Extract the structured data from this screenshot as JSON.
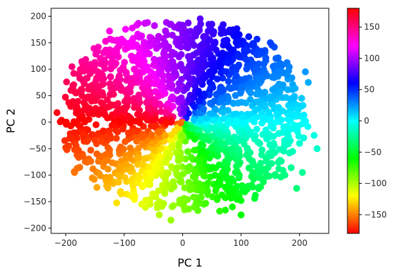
{
  "chart_data": {
    "type": "scatter",
    "title": "",
    "xlabel": "PC 1",
    "ylabel": "PC 2",
    "xlim": [
      -225,
      250
    ],
    "ylim": [
      -210,
      215
    ],
    "xticks": [
      -200,
      -100,
      0,
      100,
      200
    ],
    "yticks": [
      -200,
      -150,
      -100,
      -50,
      0,
      50,
      100,
      150,
      200
    ],
    "xtick_labels": [
      "−200",
      "−100",
      "0",
      "100",
      "200"
    ],
    "ytick_labels": [
      "−200",
      "−150",
      "−100",
      "−50",
      "0",
      "50",
      "100",
      "150",
      "200"
    ],
    "colorscale": "hsv",
    "color_range": [
      -180,
      180
    ],
    "colorbar": {
      "range": [
        -180,
        180
      ],
      "ticks": [
        -150,
        -100,
        -50,
        0,
        50,
        100,
        150
      ],
      "tick_labels": [
        "−150",
        "−100",
        "−50",
        "0",
        "50",
        "100",
        "150"
      ]
    },
    "grid": false,
    "point_cloud": {
      "description_count": 1800,
      "center": [
        0,
        15
      ],
      "spread": [
        215,
        190
      ],
      "color_value": "angle of point in degrees, atan2(PC2, PC1)"
    },
    "series": [
      {
        "points": [
          [
            -215,
            18
          ],
          [
            -200,
            -48
          ],
          [
            -198,
            -52
          ],
          [
            -195,
            -45
          ],
          [
            -185,
            -95
          ],
          [
            -125,
            172
          ],
          [
            -130,
            -120
          ],
          [
            -120,
            155
          ],
          [
            30,
            195
          ],
          [
            -60,
            188
          ],
          [
            -20,
            185
          ],
          [
            0,
            183
          ],
          [
            50,
            185
          ],
          [
            120,
            145
          ],
          [
            150,
            150
          ],
          [
            210,
            95
          ],
          [
            215,
            75
          ],
          [
            225,
            -25
          ],
          [
            230,
            -50
          ],
          [
            205,
            -95
          ],
          [
            195,
            -125
          ],
          [
            100,
            -175
          ],
          [
            85,
            -160
          ],
          [
            -20,
            -185
          ],
          [
            -40,
            -175
          ],
          [
            -70,
            -155
          ],
          [
            -105,
            60
          ],
          [
            -170,
            -25
          ],
          [
            -140,
            110
          ],
          [
            160,
            120
          ],
          [
            200,
            -40
          ],
          [
            175,
            -100
          ],
          [
            -90,
            150
          ],
          [
            -30,
            150
          ],
          [
            80,
            140
          ],
          [
            130,
            110
          ],
          [
            150,
            -60
          ],
          [
            120,
            -95
          ]
        ]
      }
    ]
  }
}
